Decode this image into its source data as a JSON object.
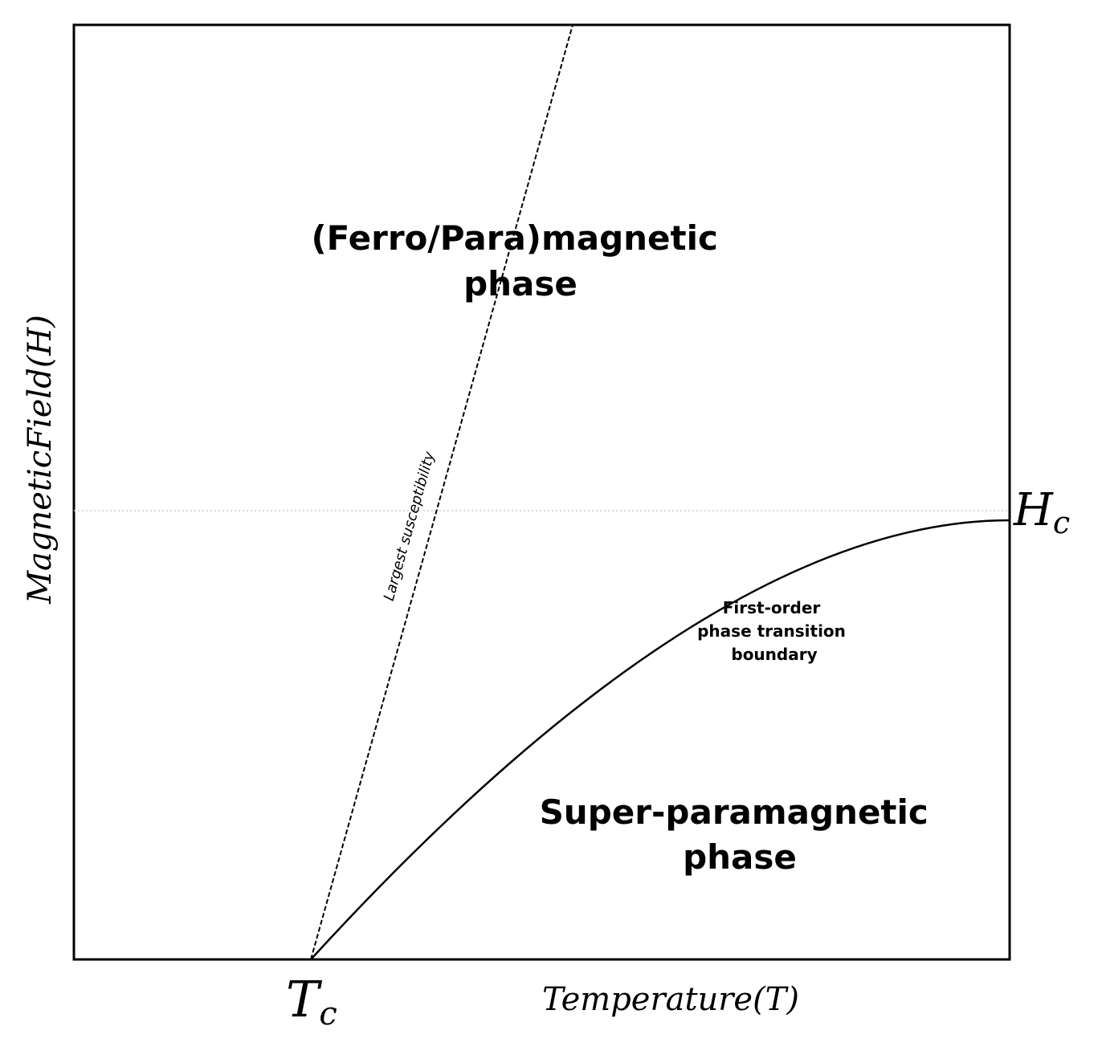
{
  "regions": [
    {
      "lines": [
        "(Ferro/Para)magnetic",
        "phase"
      ]
    },
    {
      "lines": [
        "Super-paramagnetic",
        "phase"
      ]
    }
  ],
  "boundary_label": {
    "lines": [
      "First-order",
      "phase transition",
      "boundary"
    ]
  },
  "susceptibility_label": "Largest susceptibility",
  "x_axis": {
    "label": "Temperature(T)",
    "marker": {
      "main": "T",
      "sub": "c"
    }
  },
  "y_axis": {
    "label": "MagneticField(H)",
    "marker": {
      "main": "H",
      "sub": "c"
    }
  }
}
